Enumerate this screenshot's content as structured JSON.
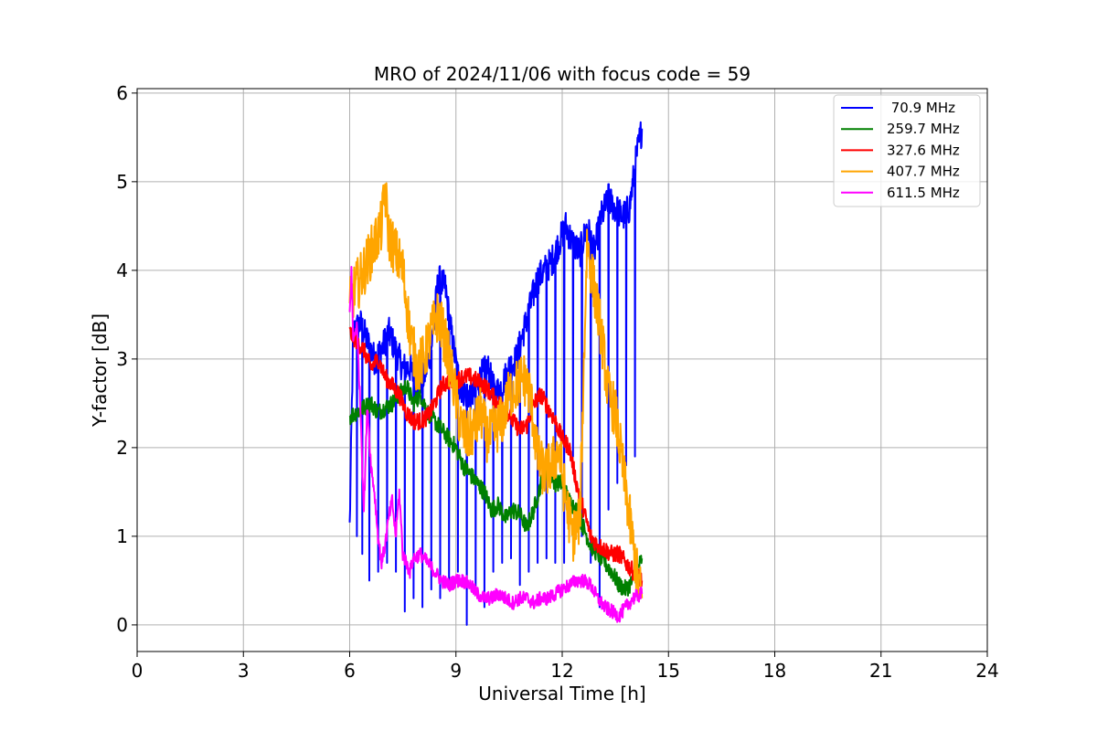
{
  "chart_data": {
    "type": "line",
    "title": "MRO of 2024/11/06 with focus code = 59",
    "xlabel": "Universal Time [h]",
    "ylabel": "Y-factor [dB]",
    "xlim": [
      0,
      24
    ],
    "ylim": [
      -0.3,
      6.05
    ],
    "xticks": [
      0,
      3,
      6,
      9,
      12,
      15,
      18,
      21,
      24
    ],
    "yticks": [
      0,
      1,
      2,
      3,
      4,
      5,
      6
    ],
    "grid": true,
    "legend_position": "top-right",
    "series": [
      {
        "name": " 70.9 MHz",
        "color": "#0000ff",
        "x": [
          6.0,
          6.1,
          6.3,
          6.5,
          6.7,
          6.9,
          7.1,
          7.3,
          7.5,
          7.7,
          7.9,
          8.1,
          8.3,
          8.5,
          8.7,
          8.9,
          9.1,
          9.3,
          9.5,
          9.7,
          9.9,
          10.1,
          10.3,
          10.5,
          10.7,
          10.9,
          11.1,
          11.3,
          11.5,
          11.7,
          11.9,
          12.1,
          12.3,
          12.5,
          12.7,
          12.9,
          13.1,
          13.3,
          13.5,
          13.7,
          13.9,
          14.1,
          14.25
        ],
        "y": [
          1.1,
          3.3,
          3.4,
          3.2,
          3.0,
          3.1,
          3.3,
          3.1,
          2.9,
          2.9,
          2.7,
          2.8,
          3.1,
          3.9,
          3.8,
          3.2,
          2.7,
          2.6,
          2.6,
          2.8,
          2.9,
          2.6,
          2.7,
          2.9,
          3.0,
          3.3,
          3.6,
          3.9,
          4.0,
          4.1,
          4.3,
          4.5,
          4.3,
          4.2,
          4.5,
          4.2,
          4.6,
          4.8,
          4.7,
          4.6,
          4.7,
          5.3,
          5.6
        ],
        "dips": [
          [
            6.2,
            1.0
          ],
          [
            6.35,
            0.8
          ],
          [
            6.55,
            0.5
          ],
          [
            6.8,
            0.6
          ],
          [
            7.05,
            0.7
          ],
          [
            7.3,
            0.6
          ],
          [
            7.55,
            0.15
          ],
          [
            7.8,
            0.3
          ],
          [
            8.05,
            0.2
          ],
          [
            8.3,
            0.4
          ],
          [
            8.55,
            0.3
          ],
          [
            8.8,
            0.4
          ],
          [
            9.05,
            0.6
          ],
          [
            9.3,
            0.0
          ],
          [
            9.55,
            0.35
          ],
          [
            9.8,
            0.2
          ],
          [
            10.05,
            0.6
          ],
          [
            10.3,
            0.7
          ],
          [
            10.55,
            0.75
          ],
          [
            10.8,
            0.45
          ],
          [
            11.05,
            0.6
          ],
          [
            11.3,
            0.7
          ],
          [
            11.55,
            0.75
          ],
          [
            11.8,
            0.7
          ],
          [
            12.05,
            0.7
          ],
          [
            12.3,
            1.9
          ],
          [
            12.55,
            1.0
          ],
          [
            12.8,
            0.7
          ],
          [
            13.05,
            0.2
          ],
          [
            13.3,
            1.3
          ],
          [
            13.55,
            1.6
          ],
          [
            13.8,
            1.8
          ],
          [
            14.05,
            1.9
          ]
        ]
      },
      {
        "name": "259.7 MHz",
        "color": "#008000",
        "x": [
          6.0,
          6.2,
          6.4,
          6.6,
          6.8,
          7.0,
          7.2,
          7.4,
          7.6,
          7.8,
          8.0,
          8.2,
          8.4,
          8.6,
          8.8,
          9.0,
          9.2,
          9.4,
          9.6,
          9.8,
          10.0,
          10.2,
          10.4,
          10.6,
          10.8,
          11.0,
          11.2,
          11.4,
          11.6,
          11.8,
          12.0,
          12.2,
          12.4,
          12.6,
          12.8,
          13.0,
          13.2,
          13.4,
          13.6,
          13.8,
          14.0,
          14.25
        ],
        "y": [
          2.35,
          2.4,
          2.45,
          2.5,
          2.4,
          2.45,
          2.5,
          2.6,
          2.7,
          2.5,
          2.6,
          2.4,
          2.3,
          2.2,
          2.1,
          2.0,
          1.8,
          1.7,
          1.6,
          1.5,
          1.3,
          1.35,
          1.2,
          1.3,
          1.25,
          1.1,
          1.3,
          1.6,
          1.8,
          1.6,
          1.6,
          1.4,
          1.3,
          1.1,
          0.9,
          0.8,
          0.7,
          0.6,
          0.45,
          0.4,
          0.5,
          0.75
        ]
      },
      {
        "name": "327.6 MHz",
        "color": "#ff0000",
        "x": [
          6.0,
          6.2,
          6.4,
          6.6,
          6.8,
          7.0,
          7.2,
          7.4,
          7.6,
          7.8,
          8.0,
          8.2,
          8.4,
          8.6,
          8.8,
          9.0,
          9.2,
          9.4,
          9.6,
          9.8,
          10.0,
          10.2,
          10.4,
          10.6,
          10.8,
          11.0,
          11.2,
          11.4,
          11.6,
          11.8,
          12.0,
          12.2,
          12.4,
          12.6,
          12.8,
          13.0,
          13.2,
          13.4,
          13.6,
          13.8,
          14.0,
          14.25
        ],
        "y": [
          3.3,
          3.2,
          3.1,
          2.9,
          3.0,
          2.8,
          2.7,
          2.6,
          2.4,
          2.3,
          2.3,
          2.35,
          2.5,
          2.7,
          2.75,
          2.75,
          2.8,
          2.8,
          2.75,
          2.7,
          2.6,
          2.5,
          2.45,
          2.3,
          2.2,
          2.25,
          2.5,
          2.6,
          2.45,
          2.3,
          2.1,
          2.0,
          1.6,
          1.3,
          1.0,
          0.9,
          0.85,
          0.8,
          0.8,
          0.7,
          0.6,
          0.5
        ]
      },
      {
        "name": "407.7 MHz",
        "color": "#ffa500",
        "x": [
          6.0,
          6.15,
          6.3,
          6.5,
          6.7,
          6.9,
          7.0,
          7.1,
          7.3,
          7.5,
          7.7,
          7.9,
          8.1,
          8.3,
          8.5,
          8.7,
          8.9,
          9.1,
          9.3,
          9.5,
          9.7,
          9.9,
          10.1,
          10.3,
          10.5,
          10.7,
          10.9,
          11.1,
          11.3,
          11.5,
          11.7,
          11.9,
          12.1,
          12.3,
          12.5,
          12.7,
          12.9,
          13.1,
          13.3,
          13.5,
          13.7,
          13.9,
          14.1,
          14.25
        ],
        "y": [
          3.6,
          3.8,
          3.9,
          4.1,
          4.3,
          4.5,
          4.9,
          4.4,
          4.2,
          4.0,
          3.3,
          2.9,
          3.0,
          3.3,
          3.5,
          3.2,
          2.8,
          2.3,
          2.1,
          2.2,
          2.4,
          2.1,
          2.2,
          2.3,
          2.6,
          2.7,
          2.8,
          2.6,
          1.9,
          1.7,
          1.8,
          2.0,
          1.4,
          1.0,
          1.2,
          4.3,
          3.8,
          3.3,
          2.6,
          2.4,
          1.8,
          1.2,
          0.6,
          0.3
        ]
      },
      {
        "name": "611.5 MHz",
        "color": "#ff00ff",
        "x": [
          6.0,
          6.05,
          6.1,
          6.2,
          6.3,
          6.4,
          6.5,
          6.6,
          6.7,
          6.8,
          6.9,
          7.0,
          7.1,
          7.2,
          7.3,
          7.4,
          7.5,
          7.6,
          7.7,
          7.8,
          8.0,
          8.2,
          8.4,
          8.6,
          8.8,
          9.0,
          9.2,
          9.4,
          9.6,
          9.8,
          10.0,
          10.2,
          10.4,
          10.6,
          10.8,
          11.0,
          11.2,
          11.4,
          11.6,
          11.8,
          12.0,
          12.2,
          12.4,
          12.6,
          12.8,
          13.0,
          13.2,
          13.4,
          13.6,
          13.8,
          14.0,
          14.25
        ],
        "y": [
          3.5,
          4.0,
          3.2,
          3.4,
          2.5,
          1.3,
          2.5,
          1.8,
          1.5,
          1.0,
          0.7,
          0.9,
          1.2,
          1.4,
          1.0,
          1.5,
          0.8,
          0.7,
          0.6,
          0.75,
          0.8,
          0.7,
          0.6,
          0.5,
          0.45,
          0.5,
          0.5,
          0.45,
          0.35,
          0.3,
          0.3,
          0.35,
          0.3,
          0.25,
          0.3,
          0.3,
          0.25,
          0.3,
          0.3,
          0.35,
          0.4,
          0.45,
          0.5,
          0.5,
          0.45,
          0.3,
          0.2,
          0.15,
          0.1,
          0.2,
          0.3,
          0.35
        ]
      }
    ]
  }
}
